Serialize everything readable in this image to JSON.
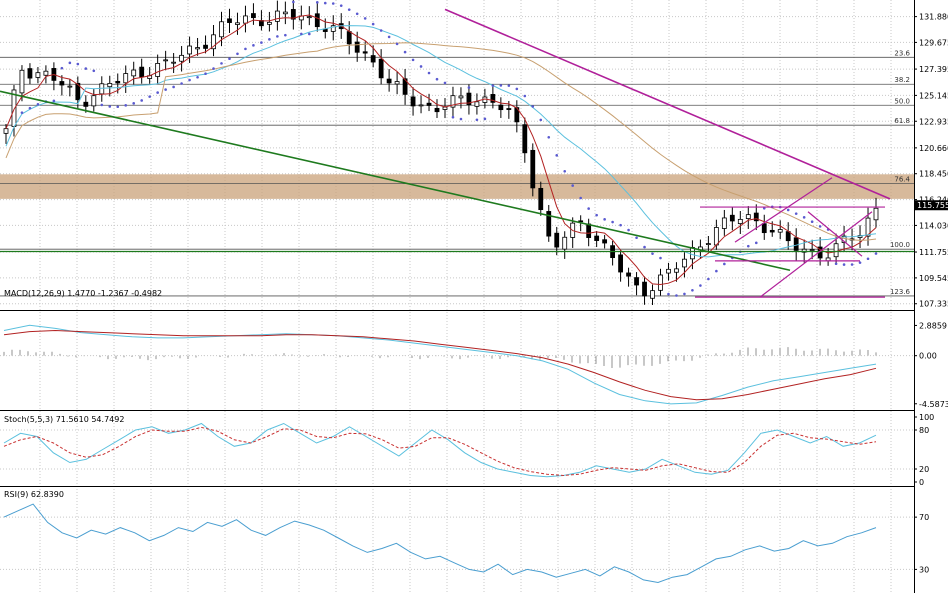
{
  "colors": {
    "background": "#ffffff",
    "grid": "#c8c8c8",
    "separator": "#000000",
    "candle": "#000000",
    "ma_fast": "#b22222",
    "ma_mid": "#5bc0de",
    "ma_slow": "#c8a070",
    "psar": "#5a5ad0",
    "trend_green": "#1e7a1e",
    "channel_magenta": "#b0209a",
    "resistance_zone": "#c9a27a",
    "macd_line": "#5bc0de",
    "macd_signal": "#b22222",
    "macd_hist": "#909090",
    "stoch_main": "#5bc0de",
    "stoch_signal": "#c83030",
    "rsi": "#4a9ed0",
    "price_box": "#000000"
  },
  "chart_data": [
    {
      "panel": "price",
      "type": "candlestick",
      "y_ticks": [
        "131.880",
        "129.675",
        "127.395",
        "125.145",
        "122.935",
        "120.660",
        "118.450",
        "116.240",
        "114.030",
        "111.755",
        "109.545",
        "107.335"
      ],
      "current_price": "115.755",
      "fib_labels": [
        "23.6",
        "38.2",
        "50.0",
        "61.8",
        "76.4",
        "100.0",
        "123.6"
      ],
      "candle_count": 110,
      "ohlc_anchor_closes": [
        122.0,
        127.5,
        127.2,
        126.8,
        125.8,
        124.5,
        125.5,
        126.0,
        126.6,
        127.2,
        127.5,
        127.8,
        128.6,
        129.5,
        130.2,
        131.2,
        131.7,
        131.8,
        131.6,
        131.9,
        132.0,
        131.5,
        130.8,
        130.0,
        129.0,
        128.0,
        126.0,
        125.2,
        124.5,
        124.0,
        124.3,
        124.8,
        125.0,
        124.6,
        123.8,
        121.5,
        116.5,
        112.0,
        113.0,
        114.5,
        113.0,
        111.5,
        109.5,
        108.5,
        109.0,
        110.0,
        111.0,
        112.5,
        113.5,
        114.3,
        114.8,
        114.5,
        113.5,
        112.5,
        112.0,
        111.8,
        111.5,
        112.8,
        113.5,
        115.7
      ],
      "series": [
        {
          "name": "psar",
          "type": "dots"
        },
        {
          "name": "ma_fast",
          "type": "line"
        },
        {
          "name": "ma_mid",
          "type": "line"
        },
        {
          "name": "ma_slow",
          "type": "line"
        }
      ],
      "ylim": [
        106.8,
        133.3
      ]
    },
    {
      "panel": "macd",
      "type": "line",
      "label": "MACD(12,26,9) 1.4770 -1.2367 -0.4982",
      "y_ticks": [
        "2.8859",
        "0.00",
        "-4.5873"
      ],
      "ylim": [
        -4.8,
        3.5
      ],
      "series": [
        {
          "name": "macd",
          "values": [
            2.4,
            2.9,
            2.6,
            2.2,
            2.0,
            1.8,
            1.7,
            1.7,
            1.8,
            1.9,
            2.0,
            2.1,
            2.0,
            1.9,
            1.7,
            1.5,
            1.2,
            0.9,
            0.6,
            0.3,
            0.0,
            -0.5,
            -1.3,
            -2.6,
            -3.7,
            -4.3,
            -4.6,
            -4.5,
            -3.8,
            -3.0,
            -2.4,
            -2.0,
            -1.6,
            -1.2,
            -0.8
          ]
        },
        {
          "name": "signal",
          "values": [
            2.0,
            2.3,
            2.4,
            2.3,
            2.2,
            2.1,
            2.0,
            1.9,
            1.9,
            1.9,
            1.9,
            2.0,
            2.0,
            1.9,
            1.8,
            1.6,
            1.4,
            1.1,
            0.8,
            0.5,
            0.2,
            -0.2,
            -0.8,
            -1.6,
            -2.5,
            -3.3,
            -3.9,
            -4.2,
            -4.1,
            -3.7,
            -3.2,
            -2.7,
            -2.2,
            -1.8,
            -1.2
          ]
        }
      ]
    },
    {
      "panel": "stochastic",
      "type": "line",
      "label": "Stoch(5,5,3) 71.5610 54.7492",
      "y_ticks": [
        "100",
        "80",
        "20",
        "0"
      ],
      "ylim": [
        0,
        100
      ],
      "series": [
        {
          "name": "main",
          "values": [
            60,
            75,
            70,
            45,
            30,
            35,
            50,
            65,
            80,
            85,
            75,
            80,
            90,
            70,
            55,
            60,
            80,
            90,
            75,
            60,
            70,
            85,
            70,
            55,
            40,
            60,
            80,
            65,
            45,
            30,
            20,
            15,
            10,
            8,
            10,
            15,
            25,
            20,
            15,
            20,
            35,
            25,
            15,
            12,
            18,
            45,
            75,
            80,
            70,
            60,
            70,
            55,
            60,
            72
          ]
        },
        {
          "name": "signal",
          "values": [
            55,
            65,
            70,
            60,
            45,
            38,
            42,
            55,
            70,
            80,
            78,
            78,
            84,
            78,
            65,
            60,
            70,
            82,
            80,
            70,
            68,
            75,
            74,
            65,
            52,
            55,
            68,
            68,
            58,
            45,
            32,
            22,
            16,
            12,
            10,
            12,
            18,
            22,
            20,
            18,
            25,
            28,
            22,
            16,
            15,
            30,
            55,
            72,
            75,
            68,
            66,
            62,
            58,
            62
          ]
        }
      ]
    },
    {
      "panel": "rsi",
      "type": "line",
      "label": "RSI(9) 62.8390",
      "y_ticks": [
        "70",
        "30"
      ],
      "ylim": [
        0,
        100
      ],
      "series": [
        {
          "name": "rsi",
          "values": [
            70,
            75,
            80,
            66,
            58,
            54,
            60,
            57,
            62,
            58,
            52,
            56,
            62,
            59,
            66,
            63,
            68,
            60,
            56,
            62,
            67,
            64,
            60,
            54,
            48,
            43,
            46,
            50,
            43,
            38,
            40,
            35,
            30,
            28,
            34,
            26,
            30,
            28,
            24,
            27,
            30,
            25,
            32,
            28,
            22,
            20,
            24,
            26,
            32,
            38,
            40,
            45,
            48,
            44,
            46,
            52,
            48,
            50,
            55,
            58,
            62
          ]
        }
      ]
    }
  ]
}
